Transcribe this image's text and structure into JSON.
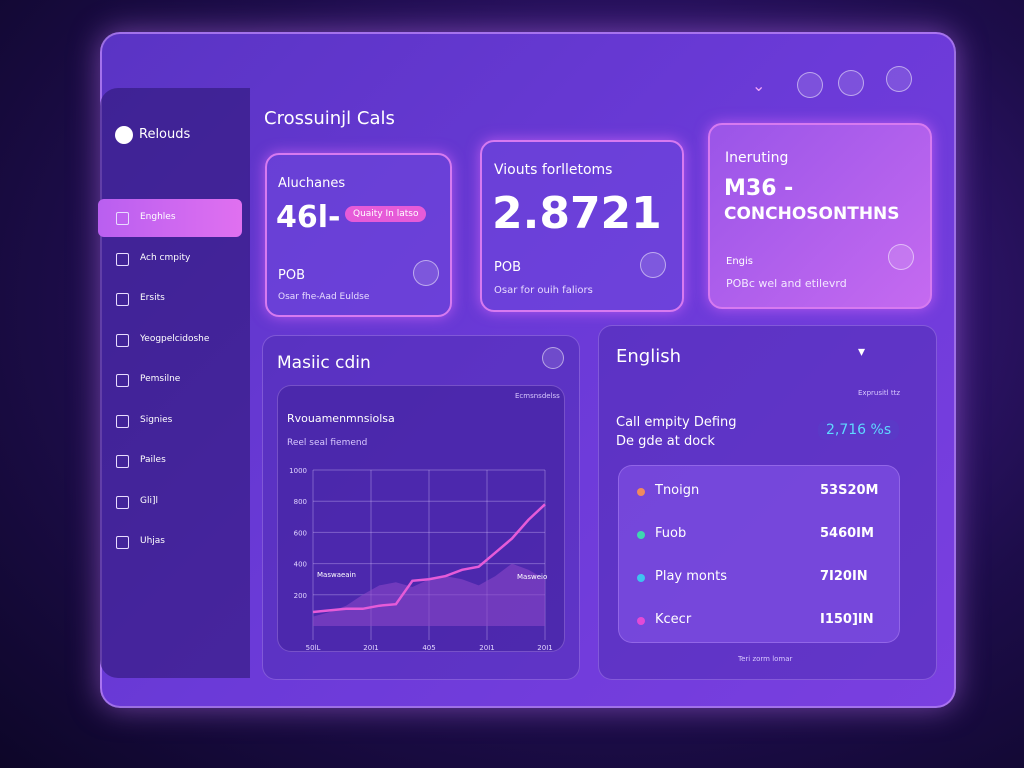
{
  "sidebar": {
    "brand": "Relouds",
    "items": [
      "Enghles",
      "Ach cmpity",
      "Ersits",
      "Yeogpelcidoshe",
      "Pemsilne",
      "Signies",
      "Pailes",
      "Gli]l",
      "Uhjas"
    ]
  },
  "header": {
    "title": "Crossuinjl Cals"
  },
  "cards": [
    {
      "title": "Aluchanes",
      "value": "46l-",
      "badge": "Quaity In latso",
      "code": "POB",
      "note": "Osar fhe-Aad Euldse"
    },
    {
      "title": "Viouts forlletoms",
      "value": "2.8721",
      "code": "POB",
      "note": "Osar for ouih faliors"
    },
    {
      "title": "Ineruting",
      "value": "M36 -",
      "subtitle": "CONCHOSONTHNS",
      "code": "Engis",
      "note": "POBc wel and etilevrd"
    }
  ],
  "chart_panel": {
    "title": "Masiic cdin",
    "box_label": "Ecmsnsdelss",
    "heading": "Rvouamenmnsiolsa",
    "subheading": "Reel seal fiemend",
    "chart": {
      "type": "line",
      "categories": [
        "50lL",
        "20I1",
        "405",
        "20I1",
        "20I1"
      ],
      "x": [
        0,
        1,
        2,
        3,
        4,
        5,
        6,
        7,
        8,
        9,
        10,
        11,
        12,
        13,
        14
      ],
      "xticks": [
        0,
        3.5,
        7,
        10.5,
        14
      ],
      "ylim": [
        0,
        1000
      ],
      "yticks": [
        200,
        400,
        600,
        800,
        1000
      ],
      "series": [
        {
          "name": "Maswaeain",
          "color": "#e65bd8",
          "values": [
            90,
            100,
            110,
            110,
            130,
            140,
            290,
            300,
            320,
            360,
            380,
            470,
            560,
            680,
            780
          ]
        },
        {
          "name": "Masweio",
          "color": "#8a46c8",
          "values": [
            60,
            90,
            130,
            200,
            260,
            280,
            250,
            300,
            320,
            300,
            260,
            320,
            400,
            360,
            300
          ]
        }
      ]
    }
  },
  "list_panel": {
    "title": "English",
    "corner": "Exprusitl ttz",
    "line1": "Call empity Defing",
    "line2": "De gde at dock",
    "badge": "2,716 %s",
    "rows": [
      {
        "label": "Tnoign",
        "value": "53S20M",
        "color": "#f08a5d"
      },
      {
        "label": "Fuob",
        "value": "5460IM",
        "color": "#3fd6b0"
      },
      {
        "label": "Play monts",
        "value": "7I20IN",
        "color": "#3ec3f0"
      },
      {
        "label": "Kcecr",
        "value": "I150]IN",
        "color": "#e34ad6"
      }
    ],
    "footer": "Teri zorm lomar"
  }
}
